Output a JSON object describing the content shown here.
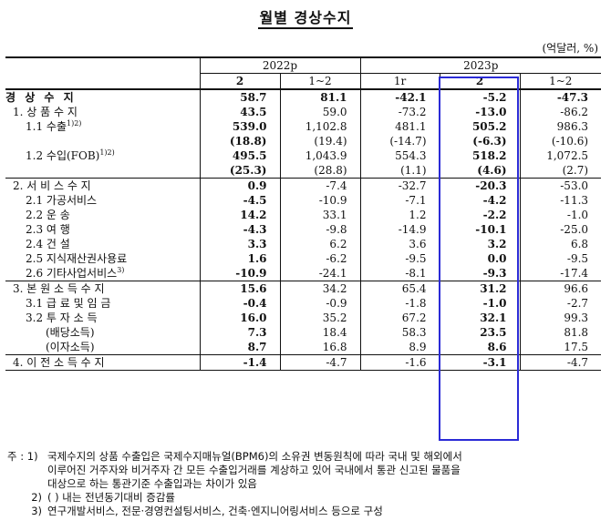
{
  "title": "월별 경상수지",
  "unit": "(억달러, %)",
  "header": {
    "year1": "2022p",
    "year2": "2023p",
    "cols": [
      "2",
      "1~2",
      "1r",
      "2",
      "1~2"
    ]
  },
  "rows": [
    {
      "label": "경 상 수 지",
      "values": [
        "58.7",
        "81.1",
        "-42.1",
        "-5.2",
        "-47.3"
      ]
    },
    {
      "label": "1. 상 품 수 지",
      "values": [
        "43.5",
        "59.0",
        "-73.2",
        "-13.0",
        "-86.2"
      ]
    },
    {
      "label": "1.1 수출",
      "sup": "1)2)",
      "values": [
        "539.0",
        "1,102.8",
        "481.1",
        "505.2",
        "986.3"
      ]
    },
    {
      "label": "",
      "values": [
        "(18.8)",
        "(19.4)",
        "(-14.7)",
        "(-6.3)",
        "(-10.6)"
      ]
    },
    {
      "label": "1.2 수입(FOB)",
      "sup": "1)2)",
      "values": [
        "495.5",
        "1,043.9",
        "554.3",
        "518.2",
        "1,072.5"
      ]
    },
    {
      "label": "",
      "values": [
        "(25.3)",
        "(28.8)",
        "(1.1)",
        "(4.6)",
        "(2.7)"
      ]
    },
    {
      "label": "2. 서 비 스 수 지",
      "values": [
        "0.9",
        "-7.4",
        "-32.7",
        "-20.3",
        "-53.0"
      ]
    },
    {
      "label": "2.1 가공서비스",
      "values": [
        "-4.5",
        "-10.9",
        "-7.1",
        "-4.2",
        "-11.3"
      ]
    },
    {
      "label": "2.2 운 송",
      "values": [
        "14.2",
        "33.1",
        "1.2",
        "-2.2",
        "-1.0"
      ]
    },
    {
      "label": "2.3 여 행",
      "values": [
        "-4.3",
        "-9.8",
        "-14.9",
        "-10.1",
        "-25.0"
      ]
    },
    {
      "label": "2.4 건 설",
      "values": [
        "3.3",
        "6.2",
        "3.6",
        "3.2",
        "6.8"
      ]
    },
    {
      "label": "2.5 지식재산권사용료",
      "values": [
        "1.6",
        "-6.2",
        "-9.5",
        "0.0",
        "-9.5"
      ]
    },
    {
      "label": "2.6 기타사업서비스",
      "sup": "3)",
      "values": [
        "-10.9",
        "-24.1",
        "-8.1",
        "-9.3",
        "-17.4"
      ]
    },
    {
      "label": "3. 본 원 소 득 수 지",
      "values": [
        "15.6",
        "34.2",
        "65.4",
        "31.2",
        "96.6"
      ]
    },
    {
      "label": "3.1 급 료 및 임 금",
      "values": [
        "-0.4",
        "-0.9",
        "-1.8",
        "-1.0",
        "-2.7"
      ]
    },
    {
      "label": "3.2 투 자 소 득",
      "values": [
        "16.0",
        "35.2",
        "67.2",
        "32.1",
        "99.3"
      ]
    },
    {
      "label": "(배당소득)",
      "values": [
        "7.3",
        "18.4",
        "58.3",
        "23.5",
        "81.8"
      ]
    },
    {
      "label": "(이자소득)",
      "values": [
        "8.7",
        "16.8",
        "8.9",
        "8.6",
        "17.5"
      ]
    },
    {
      "label": "4. 이 전 소 득 수 지",
      "values": [
        "-1.4",
        "-4.7",
        "-1.6",
        "-3.1",
        "-4.7"
      ]
    }
  ],
  "notes": {
    "prefix": "주 :",
    "n1_key": "1)",
    "n1_line1": "국제수지의 상품 수출입은 국제수지매뉴얼(BPM6)의 소유권 변동원칙에 따라 국내 및 해외에서",
    "n1_line2": "이루어진 거주자와 비거주자 간 모든 수출입거래를 계상하고 있어 국내에서 통관 신고된 물품을",
    "n1_line3": "대상으로 하는 통관기준 수출입과는 차이가 있음",
    "n2_key": "2)",
    "n2": "( ) 내는 전년동기대비 증감률",
    "n3_key": "3)",
    "n3": "연구개발서비스, 전문·경영컨설팅서비스, 건축·엔지니어링서비스 등으로 구성"
  }
}
